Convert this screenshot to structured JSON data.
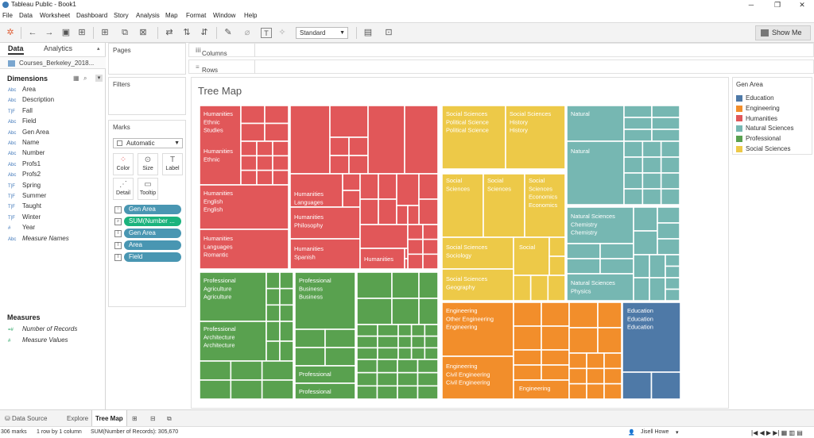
{
  "window": {
    "title": "Tableau Public - Book1"
  },
  "menu": [
    "File",
    "Data",
    "Worksheet",
    "Dashboard",
    "Story",
    "Analysis",
    "Map",
    "Format",
    "Window",
    "Help"
  ],
  "toolbar": {
    "fit": "Standard",
    "show_me": "Show Me"
  },
  "left_panel": {
    "tabs": {
      "data": "Data",
      "analytics": "Analytics"
    },
    "datasource": "Courses_Berkeley_2018...",
    "dimensions_title": "Dimensions",
    "dimensions": [
      {
        "type": "Abc",
        "name": "Area"
      },
      {
        "type": "Abc",
        "name": "Description"
      },
      {
        "type": "T|F",
        "name": "Fall"
      },
      {
        "type": "Abc",
        "name": "Field"
      },
      {
        "type": "Abc",
        "name": "Gen Area"
      },
      {
        "type": "Abc",
        "name": "Name"
      },
      {
        "type": "Abc",
        "name": "Number"
      },
      {
        "type": "Abc",
        "name": "Profs1"
      },
      {
        "type": "Abc",
        "name": "Profs2"
      },
      {
        "type": "T|F",
        "name": "Spring"
      },
      {
        "type": "T|F",
        "name": "Summer"
      },
      {
        "type": "T|F",
        "name": "Taught"
      },
      {
        "type": "T|F",
        "name": "Winter"
      },
      {
        "type": "#",
        "name": "Year"
      },
      {
        "type": "Abc",
        "name": "Measure Names"
      }
    ],
    "measures_title": "Measures",
    "measures": [
      {
        "type": "=#",
        "name": "Number of Records"
      },
      {
        "type": "#",
        "name": "Measure Values"
      }
    ]
  },
  "shelves": {
    "pages": "Pages",
    "filters": "Filters",
    "marks": "Marks",
    "mark_type": "Automatic",
    "buttons": [
      "Color",
      "Size",
      "Label",
      "Detail",
      "Tooltip"
    ],
    "pills": [
      {
        "label": "Gen Area",
        "color": "#4996b2"
      },
      {
        "label": "SUM(Number ...",
        "color": "#1bb37d"
      },
      {
        "label": "Gen Area",
        "color": "#4996b2"
      },
      {
        "label": "Area",
        "color": "#4996b2"
      },
      {
        "label": "Field",
        "color": "#4996b2"
      }
    ],
    "columns": "Columns",
    "rows": "Rows"
  },
  "viz": {
    "title": "Tree Map"
  },
  "legend": {
    "title": "Gen Area",
    "items": [
      {
        "name": "Education",
        "color": "#4e79a7"
      },
      {
        "name": "Engineering",
        "color": "#f28e2b"
      },
      {
        "name": "Humanities",
        "color": "#e15759"
      },
      {
        "name": "Natural Sciences",
        "color": "#76b7b2"
      },
      {
        "name": "Professional",
        "color": "#59a14f"
      },
      {
        "name": "Social Sciences",
        "color": "#edc948"
      }
    ]
  },
  "treemap_labels": [
    [
      "Humanities",
      "Ethnic",
      "Studies"
    ],
    [
      "Humanities",
      "Ethnic"
    ],
    [
      "Humanities",
      "English",
      "English"
    ],
    [
      "Humanities",
      "Languages",
      "Romantic"
    ],
    [
      "Humanities",
      "Languages"
    ],
    [
      "Humanities",
      "Philosophy"
    ],
    [
      "Humanities",
      "Spanish"
    ],
    [
      "Humanities"
    ],
    [
      "Professional",
      "Agriculture",
      "Agriculture"
    ],
    [
      "Professional",
      "Architecture",
      "Architecture"
    ],
    [
      "Professional",
      "Business",
      "Business"
    ],
    [
      "Professional"
    ],
    [
      "Professional"
    ],
    [
      "Social Sciences",
      "Political Science",
      "Political Science"
    ],
    [
      "Social Sciences",
      "History",
      "History"
    ],
    [
      "Social",
      "Sciences"
    ],
    [
      "Social",
      "Sciences"
    ],
    [
      "Social",
      "Sciences",
      "Economics",
      "Economics"
    ],
    [
      "Social Sciences",
      "Sociology"
    ],
    [
      "Social"
    ],
    [
      "Social Sciences",
      "Geography"
    ],
    [
      "Natural"
    ],
    [
      "Natural"
    ],
    [
      "Natural Sciences",
      "Chemistry",
      "Chemistry"
    ],
    [
      "Natural Sciences",
      "Physics"
    ],
    [
      "Engineering",
      "Other Engineering",
      "Engineering"
    ],
    [
      "Engineering",
      "Civil Engineering",
      "Civil Engineering"
    ],
    [
      "Engineering"
    ],
    [
      "Education",
      "Education",
      "Education"
    ]
  ],
  "bottom_tabs": [
    "Data Source",
    "Explore",
    "Tree Map"
  ],
  "status": {
    "marks": "306 marks",
    "rows": "1 row by 1 column",
    "sum": "SUM(Number of Records): 305,670",
    "user": "Jisell Howe"
  }
}
